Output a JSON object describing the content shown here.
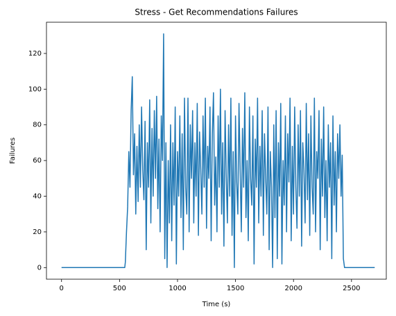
{
  "chart_data": {
    "type": "line",
    "title": "Stress - Get Recommendations Failures",
    "xlabel": "Time (s)",
    "ylabel": "Failures",
    "color": "#1f77b4",
    "xlim": [
      -130,
      2800
    ],
    "xticks": [
      0,
      500,
      1000,
      1500,
      2000,
      2500
    ],
    "ylim": [
      -6.5,
      137.5
    ],
    "yticks": [
      0,
      20,
      40,
      60,
      80,
      100,
      120
    ],
    "grid": false,
    "x": [
      0,
      545,
      550,
      560,
      570,
      580,
      590,
      600,
      610,
      620,
      630,
      640,
      650,
      660,
      670,
      680,
      690,
      700,
      710,
      720,
      730,
      740,
      750,
      760,
      770,
      780,
      790,
      800,
      810,
      820,
      830,
      840,
      850,
      860,
      870,
      880,
      890,
      900,
      910,
      920,
      930,
      940,
      950,
      960,
      970,
      980,
      990,
      1000,
      1010,
      1020,
      1030,
      1040,
      1050,
      1060,
      1070,
      1080,
      1090,
      1100,
      1110,
      1120,
      1130,
      1140,
      1150,
      1160,
      1170,
      1180,
      1190,
      1200,
      1210,
      1220,
      1230,
      1240,
      1250,
      1260,
      1270,
      1280,
      1290,
      1300,
      1310,
      1320,
      1330,
      1340,
      1350,
      1360,
      1370,
      1380,
      1390,
      1400,
      1410,
      1420,
      1430,
      1440,
      1450,
      1460,
      1470,
      1480,
      1490,
      1500,
      1510,
      1520,
      1530,
      1540,
      1550,
      1560,
      1570,
      1580,
      1590,
      1600,
      1610,
      1620,
      1630,
      1640,
      1650,
      1660,
      1670,
      1680,
      1690,
      1700,
      1710,
      1720,
      1730,
      1740,
      1750,
      1760,
      1770,
      1780,
      1790,
      1800,
      1810,
      1820,
      1830,
      1840,
      1850,
      1860,
      1870,
      1880,
      1890,
      1900,
      1910,
      1920,
      1930,
      1940,
      1950,
      1960,
      1970,
      1980,
      1990,
      2000,
      2010,
      2020,
      2030,
      2040,
      2050,
      2060,
      2070,
      2080,
      2090,
      2100,
      2110,
      2120,
      2130,
      2140,
      2150,
      2160,
      2170,
      2180,
      2190,
      2200,
      2210,
      2220,
      2230,
      2240,
      2250,
      2260,
      2270,
      2280,
      2290,
      2300,
      2310,
      2320,
      2330,
      2340,
      2350,
      2360,
      2370,
      2380,
      2390,
      2400,
      2410,
      2420,
      2430,
      2440,
      2700
    ],
    "values": [
      0,
      0,
      3,
      20,
      34,
      65,
      45,
      88,
      107,
      52,
      75,
      30,
      68,
      37,
      80,
      45,
      90,
      55,
      38,
      82,
      10,
      70,
      45,
      94,
      25,
      78,
      40,
      88,
      50,
      96,
      33,
      72,
      20,
      85,
      60,
      131,
      5,
      70,
      0,
      60,
      25,
      80,
      15,
      70,
      35,
      90,
      2,
      65,
      40,
      85,
      28,
      75,
      10,
      95,
      45,
      30,
      95,
      20,
      80,
      50,
      88,
      25,
      70,
      40,
      92,
      18,
      76,
      55,
      30,
      85,
      45,
      95,
      22,
      68,
      50,
      90,
      15,
      75,
      98,
      35,
      62,
      20,
      85,
      45,
      100,
      30,
      70,
      12,
      88,
      52,
      25,
      80,
      40,
      95,
      18,
      65,
      0,
      85,
      48,
      30,
      92,
      55,
      20,
      78,
      45,
      98,
      28,
      60,
      15,
      90,
      50,
      35,
      85,
      2,
      72,
      45,
      95,
      25,
      68,
      40,
      88,
      18,
      75,
      50,
      30,
      90,
      10,
      65,
      45,
      0,
      80,
      28,
      88,
      5,
      70,
      40,
      92,
      2,
      60,
      35,
      85,
      20,
      75,
      48,
      95,
      15,
      68,
      30,
      90,
      45,
      22,
      80,
      40,
      88,
      12,
      70,
      55,
      25,
      92,
      38,
      75,
      18,
      85,
      45,
      30,
      95,
      20,
      65,
      50,
      88,
      10,
      72,
      40,
      90,
      28,
      60,
      15,
      80,
      45,
      70,
      5,
      85,
      35,
      65,
      20,
      75,
      50,
      80,
      40,
      63,
      5,
      0,
      0
    ]
  }
}
